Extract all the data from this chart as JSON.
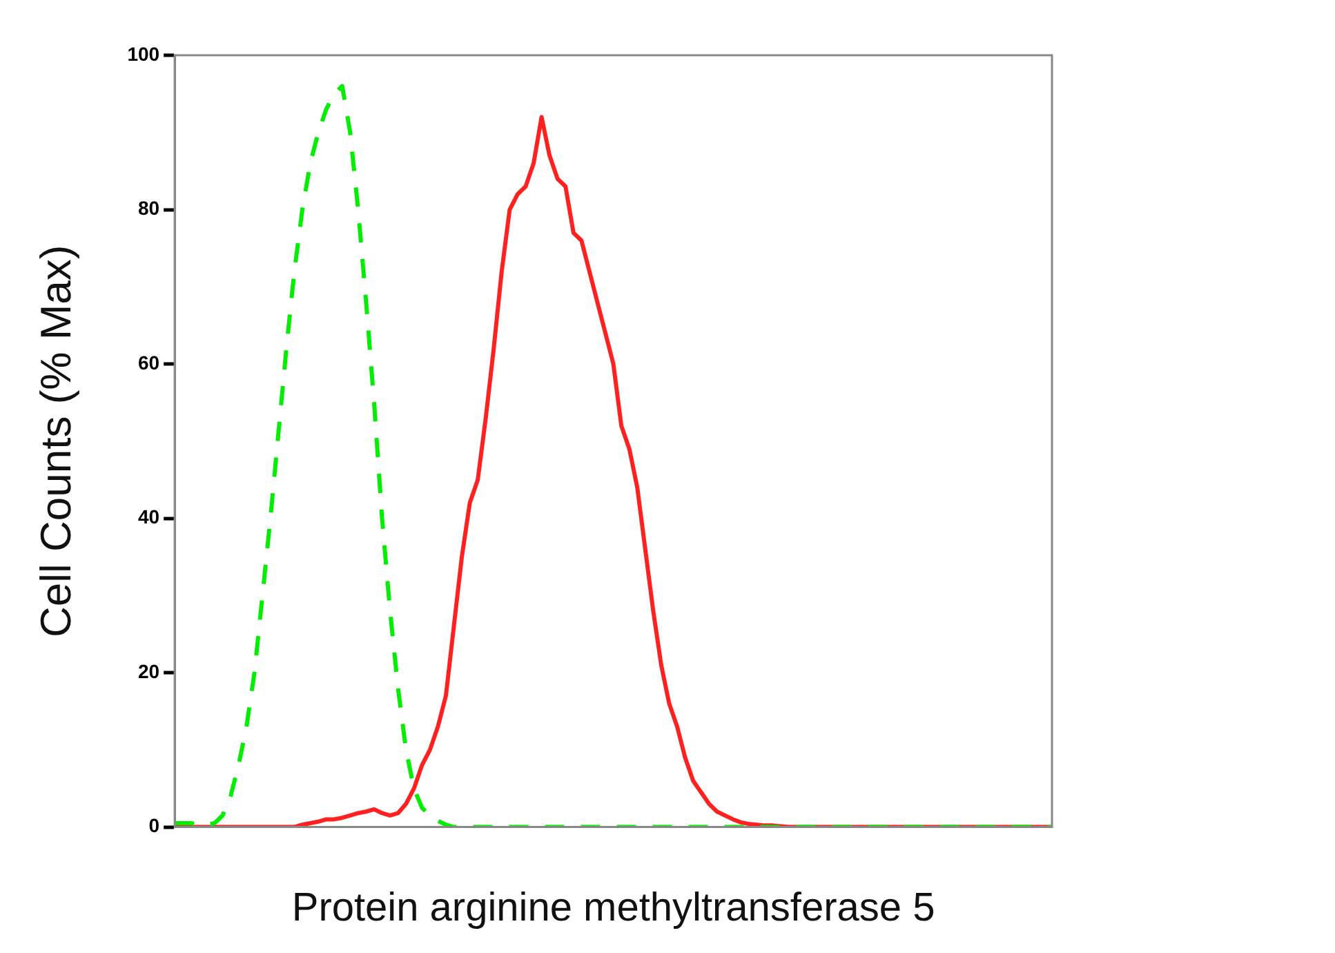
{
  "chart_data": {
    "type": "line",
    "xlabel": "Protein arginine methyltransferase 5",
    "ylabel": "Cell Counts (% Max)",
    "categories": [
      null,
      null,
      null,
      null,
      null,
      null,
      null,
      null,
      null,
      null,
      null,
      null,
      null,
      null,
      null,
      null,
      null,
      null,
      null,
      null,
      null,
      null,
      null,
      null,
      null,
      null,
      null,
      null,
      null,
      null,
      null,
      null,
      null,
      null,
      null,
      null,
      null,
      null,
      null,
      null,
      null,
      null,
      null,
      null,
      null,
      null,
      null,
      null,
      null,
      null,
      null,
      null,
      null,
      null,
      null,
      null,
      null,
      null,
      null,
      null,
      null,
      null,
      null,
      null,
      null,
      null,
      null,
      null,
      null,
      null,
      null,
      null,
      null,
      null,
      null,
      null,
      null,
      null,
      null,
      null,
      null,
      null,
      null,
      null,
      null,
      null,
      null,
      null,
      null,
      null,
      null,
      null,
      null,
      null,
      null,
      null,
      null,
      null,
      null,
      null,
      null,
      null,
      null,
      null,
      null,
      null,
      null,
      null,
      null,
      null,
      null
    ],
    "series": [
      {
        "color": "#00ee00",
        "line_style": "dashed",
        "values": [
          0.5,
          0.5,
          0.5,
          0.3,
          0.3,
          0.5,
          1.5,
          4,
          8,
          13,
          20,
          30,
          40,
          51,
          62,
          72,
          80,
          86,
          90,
          93,
          95,
          96,
          90,
          80,
          68,
          55,
          40,
          28,
          18,
          10,
          5,
          2.5,
          1.5,
          0.8,
          0.3,
          0,
          0,
          0,
          0,
          0,
          0,
          0,
          0,
          0,
          0,
          0,
          0,
          0,
          0,
          0,
          0,
          0,
          0,
          0,
          0,
          0,
          0,
          0,
          0,
          0,
          0,
          0,
          0,
          0,
          0,
          0,
          0,
          0,
          0,
          0,
          0,
          0,
          0,
          0,
          0,
          0,
          0,
          0,
          0,
          0,
          0,
          0,
          0,
          0,
          0,
          0,
          0,
          0,
          0,
          0,
          0,
          0,
          0,
          0,
          0,
          0,
          0,
          0,
          0,
          0,
          0,
          0,
          0,
          0,
          0,
          0,
          0,
          0,
          0,
          0,
          0
        ]
      },
      {
        "color": "#ff2020",
        "line_style": "solid",
        "values": [
          0,
          0,
          0,
          0,
          0,
          0,
          0,
          0,
          0,
          0,
          0,
          0,
          0,
          0,
          0,
          0,
          0.3,
          0.5,
          0.7,
          1,
          1,
          1.2,
          1.5,
          1.8,
          2,
          2.3,
          1.8,
          1.5,
          1.8,
          3,
          5,
          8,
          10,
          13,
          17,
          26,
          35,
          42,
          45,
          53,
          62,
          72,
          80,
          82,
          83,
          86,
          92,
          87,
          84,
          83,
          77,
          76,
          72,
          68,
          64,
          60,
          52,
          49,
          44,
          36,
          28,
          21,
          16,
          13,
          9,
          6,
          4.5,
          3,
          2,
          1.5,
          1,
          0.6,
          0.4,
          0.3,
          0.2,
          0.2,
          0.1,
          0,
          0,
          0,
          0,
          0,
          0,
          0,
          0,
          0,
          0,
          0,
          0,
          0,
          0,
          0,
          0,
          0,
          0,
          0,
          0,
          0,
          0,
          0,
          0,
          0,
          0,
          0,
          0,
          0,
          0,
          0,
          0,
          0,
          0
        ]
      }
    ],
    "ylim": [
      0,
      100
    ],
    "yticks": [
      0,
      20,
      40,
      60,
      80,
      100
    ],
    "grid": false,
    "legend": false,
    "marker": "none"
  }
}
